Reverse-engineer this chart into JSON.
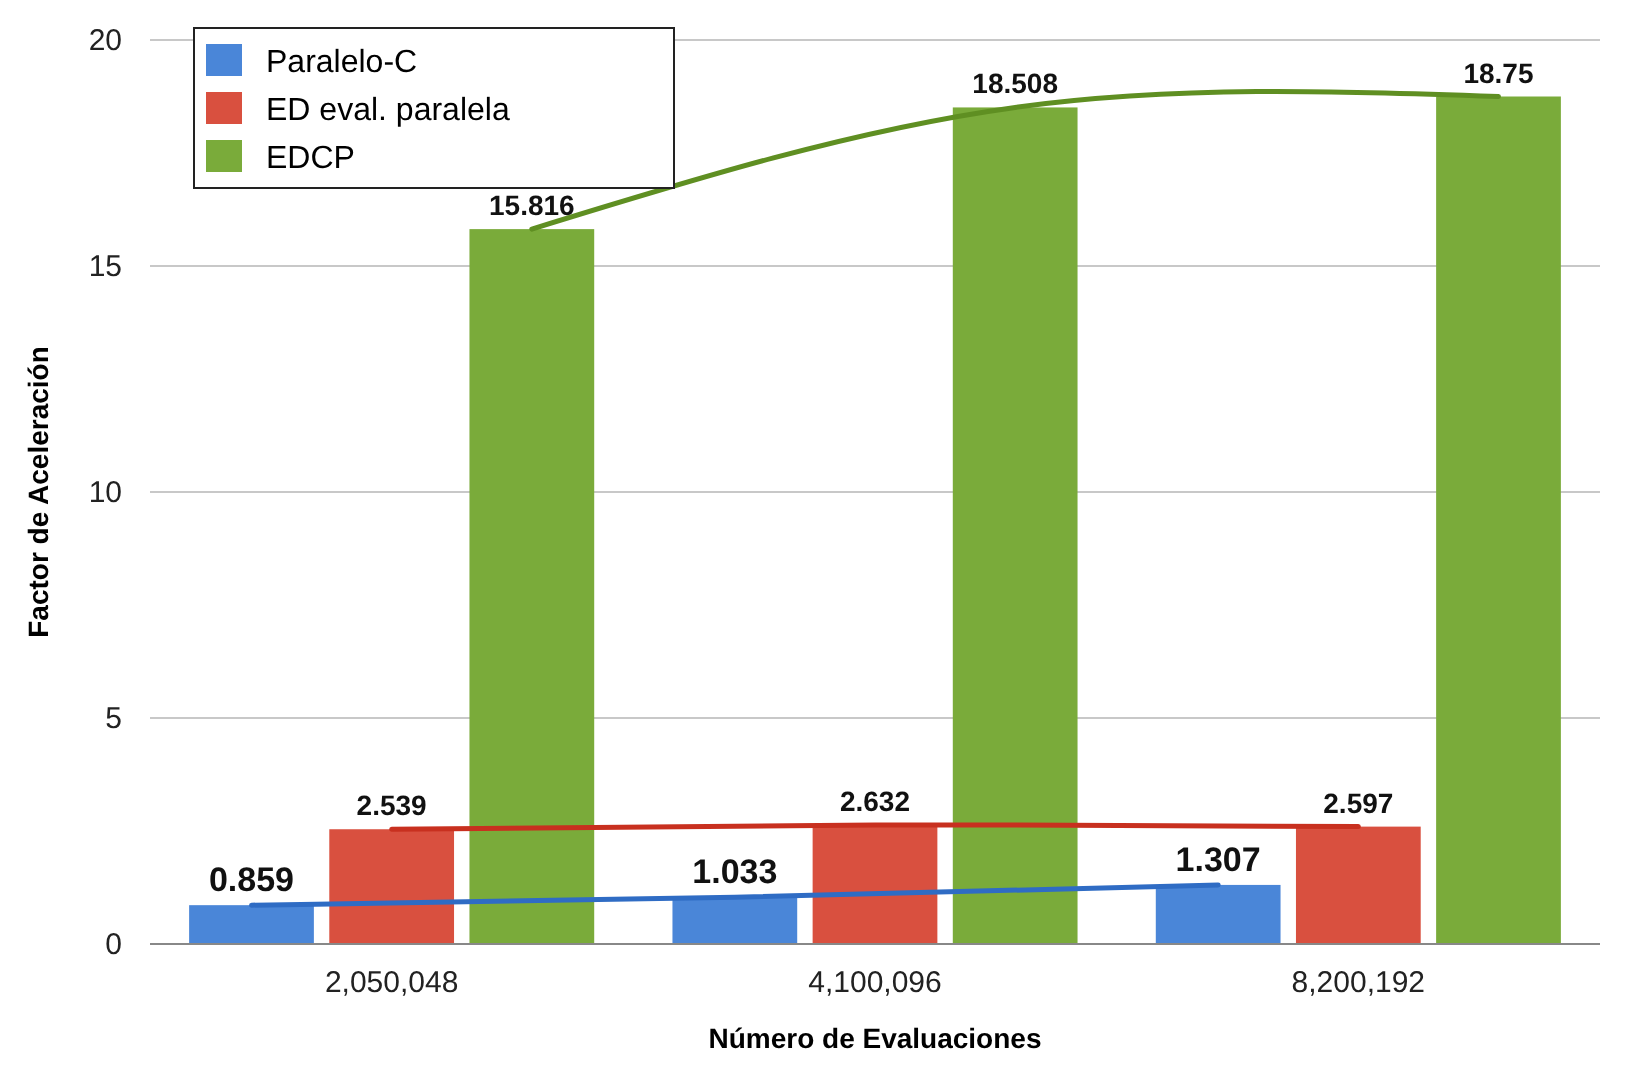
{
  "chart_data": {
    "type": "bar",
    "xlabel": "Número de Evaluaciones",
    "ylabel": "Factor de Aceleración",
    "categories": [
      "2,050,048",
      "4,100,096",
      "8,200,192"
    ],
    "ylim": [
      0,
      20
    ],
    "yticks": [
      0,
      5,
      10,
      15,
      20
    ],
    "grid": "y",
    "legend": "top left",
    "series": [
      {
        "name": "Paralelo-C",
        "color": "#4a86d8",
        "values": [
          0.859,
          1.033,
          1.307
        ],
        "value_labels": [
          "0.859",
          "1.033",
          "1.307"
        ]
      },
      {
        "name": "ED eval. paralela",
        "color": "#d9503f",
        "values": [
          2.539,
          2.632,
          2.597
        ],
        "value_labels": [
          "2.539",
          "2.632",
          "2.597"
        ]
      },
      {
        "name": "EDCP",
        "color": "#7aab3a",
        "values": [
          15.816,
          18.508,
          18.75
        ],
        "value_labels": [
          "15.816",
          "18.508",
          "18.75"
        ]
      },
      {
        "type": "line",
        "color": "#2f6cc4",
        "x": [
          "2,050,048",
          "4,100,096",
          "8,200,192"
        ],
        "values": [
          0.859,
          1.033,
          1.307
        ]
      },
      {
        "type": "line",
        "color": "#c8301f",
        "x": [
          "2,050,048",
          "4,100,096",
          "8,200,192"
        ],
        "values": [
          2.539,
          2.632,
          2.597
        ]
      },
      {
        "type": "line",
        "color": "#5f8f22",
        "x": [
          "2,050,048",
          "4,100,096",
          "8,200,192"
        ],
        "values": [
          15.816,
          18.508,
          18.75
        ]
      }
    ]
  }
}
